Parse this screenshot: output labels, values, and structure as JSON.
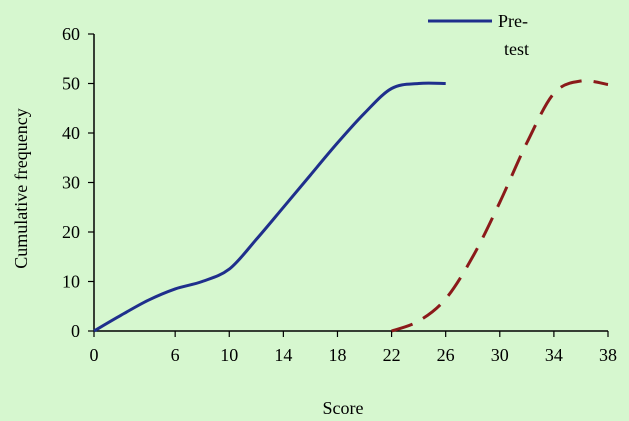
{
  "chart_data": {
    "type": "line",
    "title": "",
    "xlabel": "Score",
    "ylabel": "Cumulative frequency",
    "xlim": [
      0,
      38
    ],
    "ylim": [
      0,
      60
    ],
    "x_ticks": [
      0,
      6,
      10,
      14,
      18,
      22,
      26,
      30,
      34,
      38
    ],
    "x_tick_labels": [
      "0",
      "6",
      "10",
      "14",
      "18",
      "22",
      "26",
      "30",
      "34",
      "38"
    ],
    "y_ticks": [
      0,
      10,
      20,
      30,
      40,
      50,
      60
    ],
    "y_tick_labels": [
      "0",
      "10",
      "20",
      "30",
      "40",
      "50",
      "60"
    ],
    "grid": false,
    "legend": {
      "placement": "top-right",
      "entries": [
        "Pre-test"
      ]
    },
    "series": [
      {
        "name": "Pre-test",
        "color": "#1f2f8c",
        "dash": "solid",
        "points": [
          [
            0,
            0
          ],
          [
            2,
            3.2
          ],
          [
            4,
            6.2
          ],
          [
            6,
            8.5
          ],
          [
            8,
            10
          ],
          [
            10,
            12.5
          ],
          [
            12,
            18.5
          ],
          [
            14,
            25
          ],
          [
            16,
            31.5
          ],
          [
            18,
            38
          ],
          [
            20,
            44
          ],
          [
            22,
            49
          ],
          [
            24,
            50
          ],
          [
            26,
            50
          ]
        ]
      },
      {
        "name": "",
        "color": "#8b1a1a",
        "dash": "dashed",
        "points": [
          [
            22,
            0
          ],
          [
            24,
            2
          ],
          [
            26,
            6.5
          ],
          [
            28,
            15
          ],
          [
            30,
            26
          ],
          [
            32,
            38
          ],
          [
            34,
            48
          ],
          [
            36,
            50.5
          ],
          [
            38,
            49.8
          ]
        ]
      }
    ]
  }
}
